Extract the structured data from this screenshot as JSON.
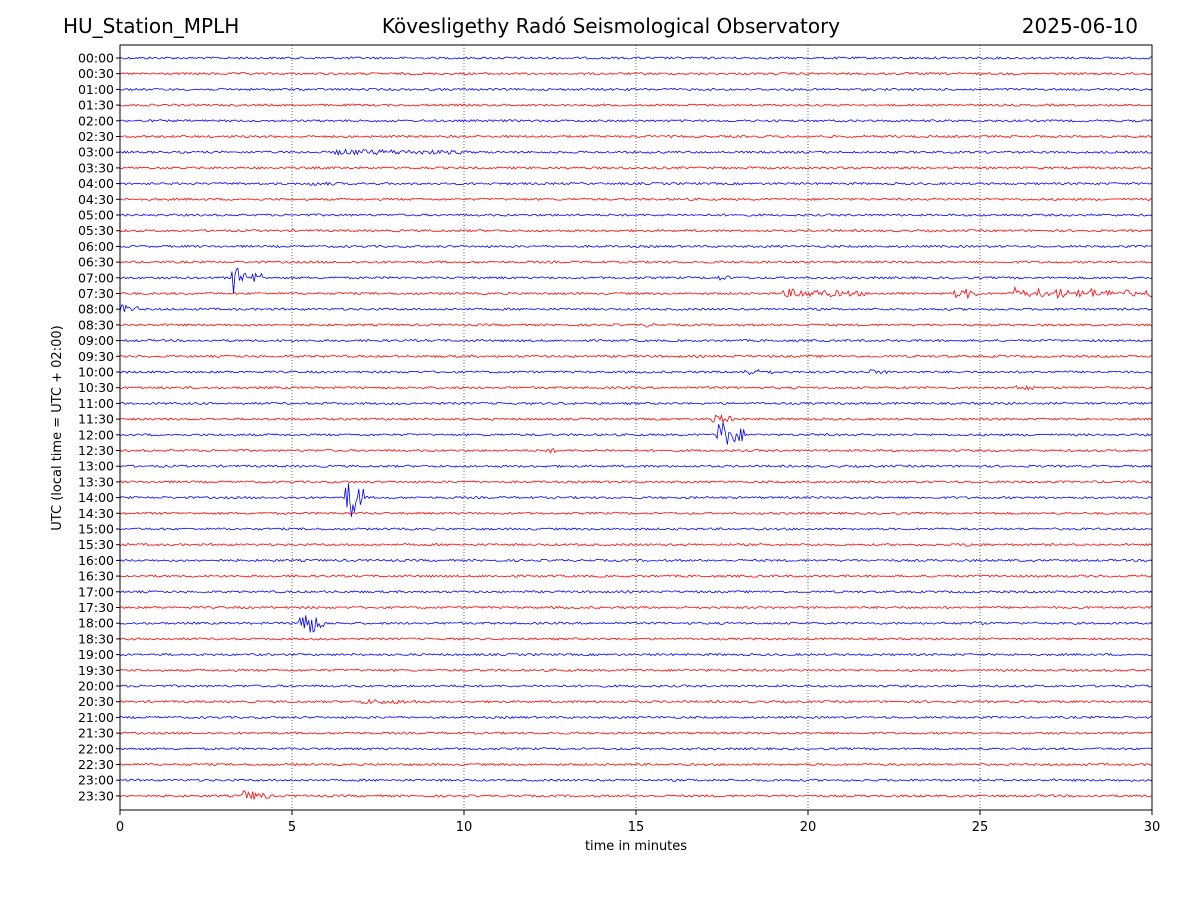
{
  "header": {
    "station": "HU_Station_MPLH",
    "observatory": "Kövesligethy Radó Seismological Observatory",
    "date": "2025-06-10"
  },
  "chart_data": {
    "type": "line",
    "title": "Kövesligethy Radó Seismological Observatory",
    "xlabel": "time in minutes",
    "ylabel": "UTC (local time = UTC + 02:00)",
    "xlim": [
      0,
      30
    ],
    "x_ticks": [
      0,
      5,
      10,
      15,
      20,
      25,
      30
    ],
    "vertical_gridlines_at": [
      5,
      10,
      15,
      20,
      25
    ],
    "grid": "vertical dotted",
    "trace_colors": [
      "#0000ff",
      "#ff0000"
    ],
    "rows": [
      "00:00",
      "00:30",
      "01:00",
      "01:30",
      "02:00",
      "02:30",
      "03:00",
      "03:30",
      "04:00",
      "04:30",
      "05:00",
      "05:30",
      "06:00",
      "06:30",
      "07:00",
      "07:30",
      "08:00",
      "08:30",
      "09:00",
      "09:30",
      "10:00",
      "10:30",
      "11:00",
      "11:30",
      "12:00",
      "12:30",
      "13:00",
      "13:30",
      "14:00",
      "14:30",
      "15:00",
      "15:30",
      "16:00",
      "16:30",
      "17:00",
      "17:30",
      "18:00",
      "18:30",
      "19:00",
      "19:30",
      "20:00",
      "20:30",
      "21:00",
      "21:30",
      "22:00",
      "22:30",
      "23:00",
      "23:30"
    ],
    "events": [
      {
        "row": "03:00",
        "start_min": 6.3,
        "end_min": 10.0,
        "amplitude": 0.25
      },
      {
        "row": "04:00",
        "start_min": 5.5,
        "end_min": 6.2,
        "amplitude": 0.15
      },
      {
        "row": "07:00",
        "start_min": 3.3,
        "end_min": 3.5,
        "amplitude": 2.0
      },
      {
        "row": "07:00",
        "start_min": 3.9,
        "end_min": 4.0,
        "amplitude": 1.3
      },
      {
        "row": "07:00",
        "start_min": 17.4,
        "end_min": 17.8,
        "amplitude": 0.2
      },
      {
        "row": "07:30",
        "start_min": 19.3,
        "end_min": 21.5,
        "amplitude": 0.45
      },
      {
        "row": "07:30",
        "start_min": 24.2,
        "end_min": 24.4,
        "amplitude": 0.6
      },
      {
        "row": "07:30",
        "start_min": 24.6,
        "end_min": 24.8,
        "amplitude": 0.6
      },
      {
        "row": "07:30",
        "start_min": 26.0,
        "end_min": 26.3,
        "amplitude": 0.7
      },
      {
        "row": "07:30",
        "start_min": 26.7,
        "end_min": 26.9,
        "amplitude": 0.5
      },
      {
        "row": "07:30",
        "start_min": 27.2,
        "end_min": 27.5,
        "amplitude": 0.7
      },
      {
        "row": "07:30",
        "start_min": 27.8,
        "end_min": 28.0,
        "amplitude": 0.6
      },
      {
        "row": "07:30",
        "start_min": 28.2,
        "end_min": 28.4,
        "amplitude": 0.6
      },
      {
        "row": "07:30",
        "start_min": 28.7,
        "end_min": 28.9,
        "amplitude": 0.5
      },
      {
        "row": "07:30",
        "start_min": 29.1,
        "end_min": 29.4,
        "amplitude": 0.5
      },
      {
        "row": "07:30",
        "start_min": 29.8,
        "end_min": 30.0,
        "amplitude": 0.7
      },
      {
        "row": "08:00",
        "start_min": 0.0,
        "end_min": 0.4,
        "amplitude": 0.5
      },
      {
        "row": "08:30",
        "start_min": 15.2,
        "end_min": 15.4,
        "amplitude": 0.2
      },
      {
        "row": "10:00",
        "start_min": 18.1,
        "end_min": 18.8,
        "amplitude": 0.3
      },
      {
        "row": "10:00",
        "start_min": 21.8,
        "end_min": 22.2,
        "amplitude": 0.2
      },
      {
        "row": "10:30",
        "start_min": 26.1,
        "end_min": 26.5,
        "amplitude": 0.3
      },
      {
        "row": "11:30",
        "start_min": 17.2,
        "end_min": 17.7,
        "amplitude": 0.6
      },
      {
        "row": "12:00",
        "start_min": 17.4,
        "end_min": 18.0,
        "amplitude": 1.8
      },
      {
        "row": "12:30",
        "start_min": 12.4,
        "end_min": 12.6,
        "amplitude": 0.3
      },
      {
        "row": "14:00",
        "start_min": 6.6,
        "end_min": 7.0,
        "amplitude": 3.0
      },
      {
        "row": "15:30",
        "start_min": 24.5,
        "end_min": 24.9,
        "amplitude": 0.15
      },
      {
        "row": "18:00",
        "start_min": 5.2,
        "end_min": 5.8,
        "amplitude": 1.8
      },
      {
        "row": "18:00",
        "start_min": 24.8,
        "end_min": 25.0,
        "amplitude": 0.2
      },
      {
        "row": "20:30",
        "start_min": 7.0,
        "end_min": 8.6,
        "amplitude": 0.2
      },
      {
        "row": "23:30",
        "start_min": 3.6,
        "end_min": 4.2,
        "amplitude": 0.6
      }
    ]
  }
}
